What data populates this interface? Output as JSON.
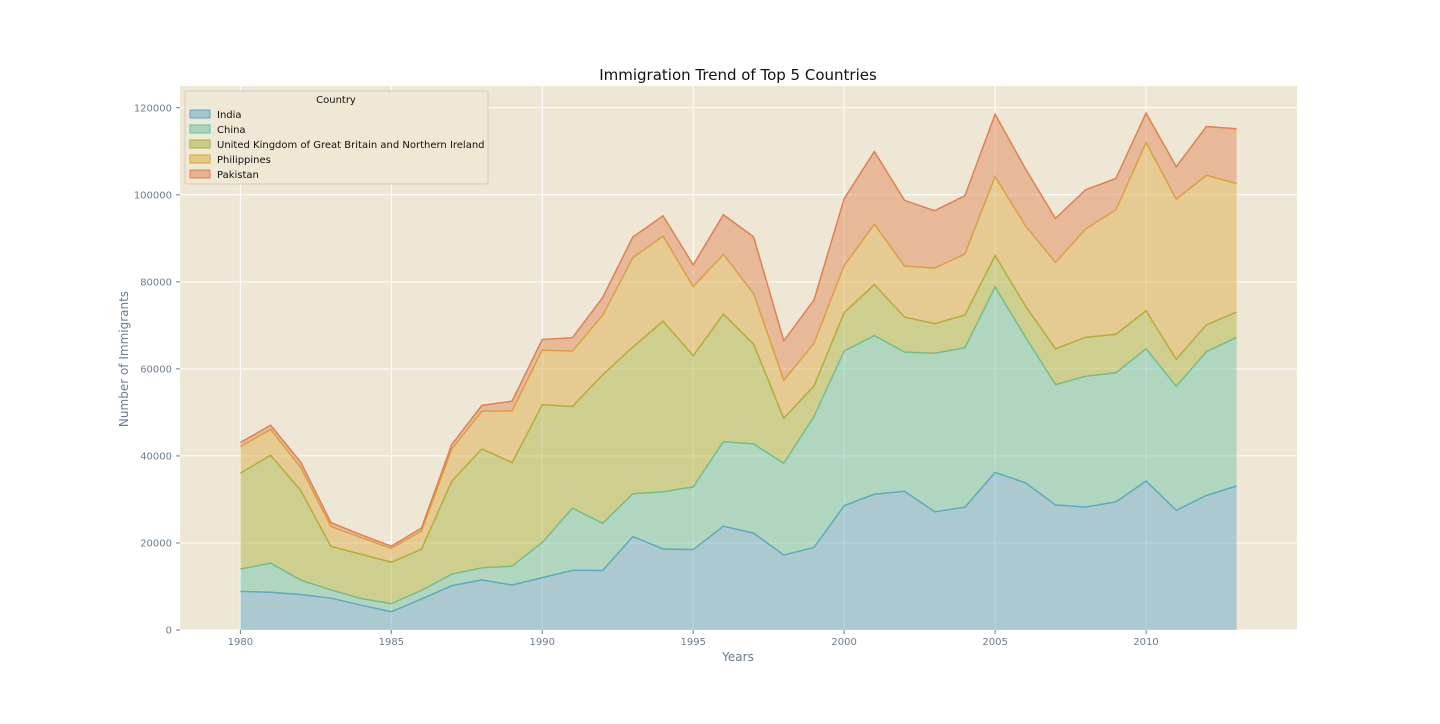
{
  "chart_data": {
    "type": "area",
    "stacked": true,
    "title": "Immigration Trend of Top 5 Countries",
    "xlabel": "Years",
    "ylabel": "Number of Immigrants",
    "xlim": [
      1978,
      2015
    ],
    "ylim": [
      0,
      125000
    ],
    "xticks": [
      1980,
      1985,
      1990,
      1995,
      2000,
      2005,
      2010
    ],
    "yticks": [
      0,
      20000,
      40000,
      60000,
      80000,
      100000,
      120000
    ],
    "grid": true,
    "legend": {
      "title": "Country",
      "placement": "top-left"
    },
    "colors": {
      "plot_background": "#efe7d5",
      "tick_text": "#6b7d8e"
    },
    "x": [
      1980,
      1981,
      1982,
      1983,
      1984,
      1985,
      1986,
      1987,
      1988,
      1989,
      1990,
      1991,
      1992,
      1993,
      1994,
      1995,
      1996,
      1997,
      1998,
      1999,
      2000,
      2001,
      2002,
      2003,
      2004,
      2005,
      2006,
      2007,
      2008,
      2009,
      2010,
      2011,
      2012,
      2013
    ],
    "series": [
      {
        "name": "India",
        "color": "#5aa5c8",
        "values": [
          8880,
          8670,
          8147,
          7338,
          5704,
          4211,
          7150,
          10189,
          11522,
          10343,
          12041,
          13734,
          13673,
          21496,
          18620,
          18489,
          23859,
          22268,
          17241,
          18974,
          28572,
          31223,
          31889,
          27155,
          28235,
          36210,
          33848,
          28742,
          28261,
          29456,
          34235,
          27509,
          30933,
          33087
        ]
      },
      {
        "name": "China",
        "color": "#66c2a5",
        "values": [
          5123,
          6682,
          3308,
          1863,
          1527,
          1816,
          1960,
          2643,
          2758,
          4323,
          8076,
          14255,
          10846,
          9817,
          13128,
          14398,
          19415,
          20475,
          21049,
          30069,
          35529,
          36434,
          31961,
          36439,
          36619,
          42584,
          33518,
          27642,
          30037,
          29622,
          30391,
          28502,
          33024,
          34129
        ]
      },
      {
        "name": "United Kingdom of Great Britain and Northern Ireland",
        "color": "#a6b03a",
        "values": [
          22045,
          24796,
          20620,
          10015,
          10170,
          9564,
          9470,
          21337,
          27359,
          23795,
          31668,
          23380,
          34123,
          33720,
          39231,
          30145,
          29322,
          22965,
          10367,
          7045,
          8840,
          11728,
          8046,
          6797,
          7533,
          7258,
          7140,
          8216,
          8979,
          8876,
          8724,
          6204,
          6195,
          5827
        ]
      },
      {
        "name": "Philippines",
        "color": "#d9a93e",
        "values": [
          6051,
          5921,
          5249,
          4562,
          3801,
          3150,
          4166,
          7360,
          8639,
          11865,
          12509,
          12718,
          13670,
          20479,
          19532,
          15864,
          13692,
          11549,
          8735,
          9734,
          10763,
          13836,
          11707,
          12758,
          14004,
          18139,
          18400,
          19837,
          24887,
          28573,
          38617,
          36765,
          34315,
          29544
        ]
      },
      {
        "name": "Pakistan",
        "color": "#e08050",
        "values": [
          978,
          972,
          1201,
          900,
          668,
          514,
          691,
          1072,
          1334,
          2261,
          2470,
          3079,
          4071,
          4777,
          4666,
          4994,
          9125,
          13073,
          9068,
          9979,
          15400,
          16708,
          15110,
          13205,
          13399,
          14314,
          13127,
          10124,
          8994,
          7217,
          6811,
          7468,
          11227,
          12603
        ]
      }
    ]
  }
}
